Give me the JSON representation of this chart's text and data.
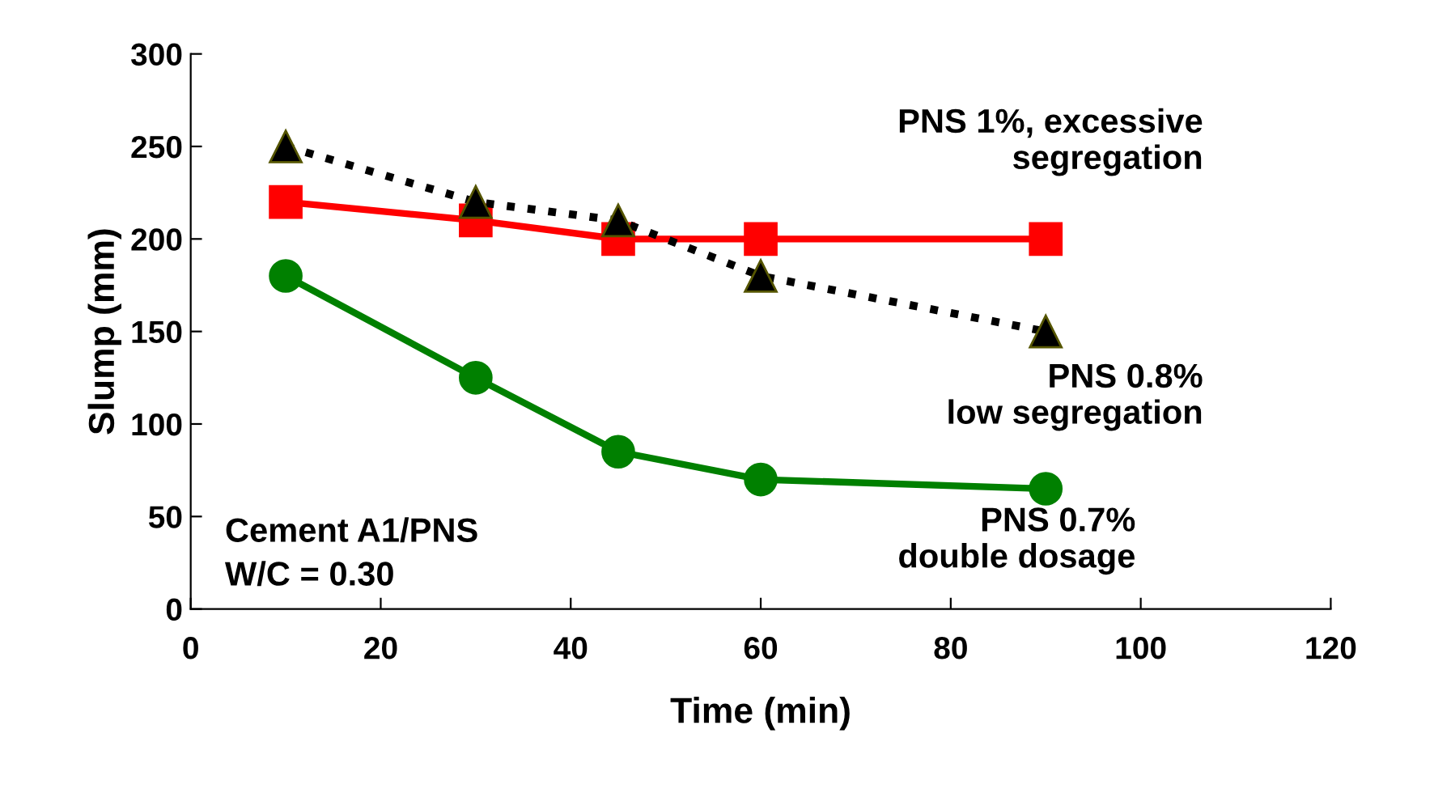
{
  "chart_data": {
    "type": "line",
    "xlabel": "Time (min)",
    "ylabel": "Slump (mm)",
    "x": [
      10,
      30,
      45,
      60,
      90
    ],
    "xlim": [
      0,
      120
    ],
    "xticks": [
      0,
      20,
      40,
      60,
      80,
      100,
      120
    ],
    "ylim": [
      0,
      300
    ],
    "yticks": [
      0,
      50,
      100,
      150,
      200,
      250,
      300
    ],
    "grid": false,
    "legend": false,
    "series": [
      {
        "name": "PNS 1%, excessive\nsegregation",
        "color": "#ff0000",
        "marker": "square",
        "line_style": "solid",
        "values": [
          220,
          210,
          200,
          200,
          200
        ]
      },
      {
        "name": "PNS 0.8%\nlow segregation",
        "color": "#000000",
        "marker": "triangle",
        "line_style": "dotted",
        "values": [
          250,
          220,
          210,
          180,
          150
        ]
      },
      {
        "name": "PNS 0.7%\ndouble dosage",
        "color": "#008000",
        "marker": "circle",
        "line_style": "solid",
        "values": [
          180,
          125,
          85,
          70,
          65
        ]
      }
    ],
    "annotations": [
      "Cement A1/PNS\nW/C = 0.30"
    ]
  }
}
